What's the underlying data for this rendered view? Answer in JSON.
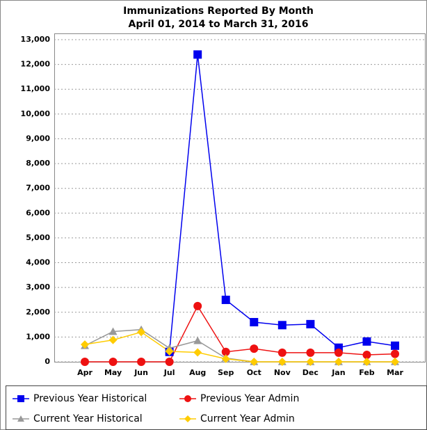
{
  "chart_data": {
    "type": "line",
    "title": "Immunizations Reported By Month",
    "subtitle": "April 01, 2014 to March 31, 2016",
    "categories": [
      "Apr",
      "May",
      "Jun",
      "Jul",
      "Aug",
      "Sep",
      "Oct",
      "Nov",
      "Dec",
      "Jan",
      "Feb",
      "Mar"
    ],
    "series": [
      {
        "name": "Previous Year Historical",
        "color": "#0000ee",
        "marker": "square",
        "values": [
          null,
          null,
          null,
          400,
          12400,
          2500,
          1600,
          1480,
          1520,
          570,
          820,
          650
        ]
      },
      {
        "name": "Previous Year Admin",
        "color": "#ee1111",
        "marker": "circle",
        "values": [
          0,
          0,
          0,
          0,
          2250,
          400,
          530,
          370,
          370,
          370,
          280,
          320
        ]
      },
      {
        "name": "Current Year Historical",
        "color": "#999999",
        "marker": "triangle",
        "values": [
          650,
          1220,
          1300,
          550,
          850,
          150,
          0,
          0,
          0,
          0,
          0,
          0
        ]
      },
      {
        "name": "Current Year Admin",
        "color": "#ffcc00",
        "marker": "diamond",
        "values": [
          700,
          880,
          1200,
          420,
          380,
          120,
          0,
          0,
          0,
          0,
          0,
          0
        ]
      }
    ],
    "ylim": [
      0,
      13000
    ],
    "yticks": [
      0,
      {
        "value": 1000,
        "label": "1,000"
      },
      {
        "value": 2000,
        "label": "2,000"
      },
      {
        "value": 3000,
        "label": "3,000"
      },
      {
        "value": 4000,
        "label": "4,000"
      },
      {
        "value": 5000,
        "label": "5,000"
      },
      {
        "value": 6000,
        "label": "6,000"
      },
      {
        "value": 7000,
        "label": "7,000"
      },
      {
        "value": 8000,
        "label": "8,000"
      },
      {
        "value": 9000,
        "label": "9,000"
      },
      {
        "value": 10000,
        "label": "10,000"
      },
      {
        "value": 11000,
        "label": "11,000"
      },
      {
        "value": 12000,
        "label": "12,000"
      },
      {
        "value": 13000,
        "label": "13,000"
      }
    ],
    "grid": true,
    "legend": "bottom"
  }
}
